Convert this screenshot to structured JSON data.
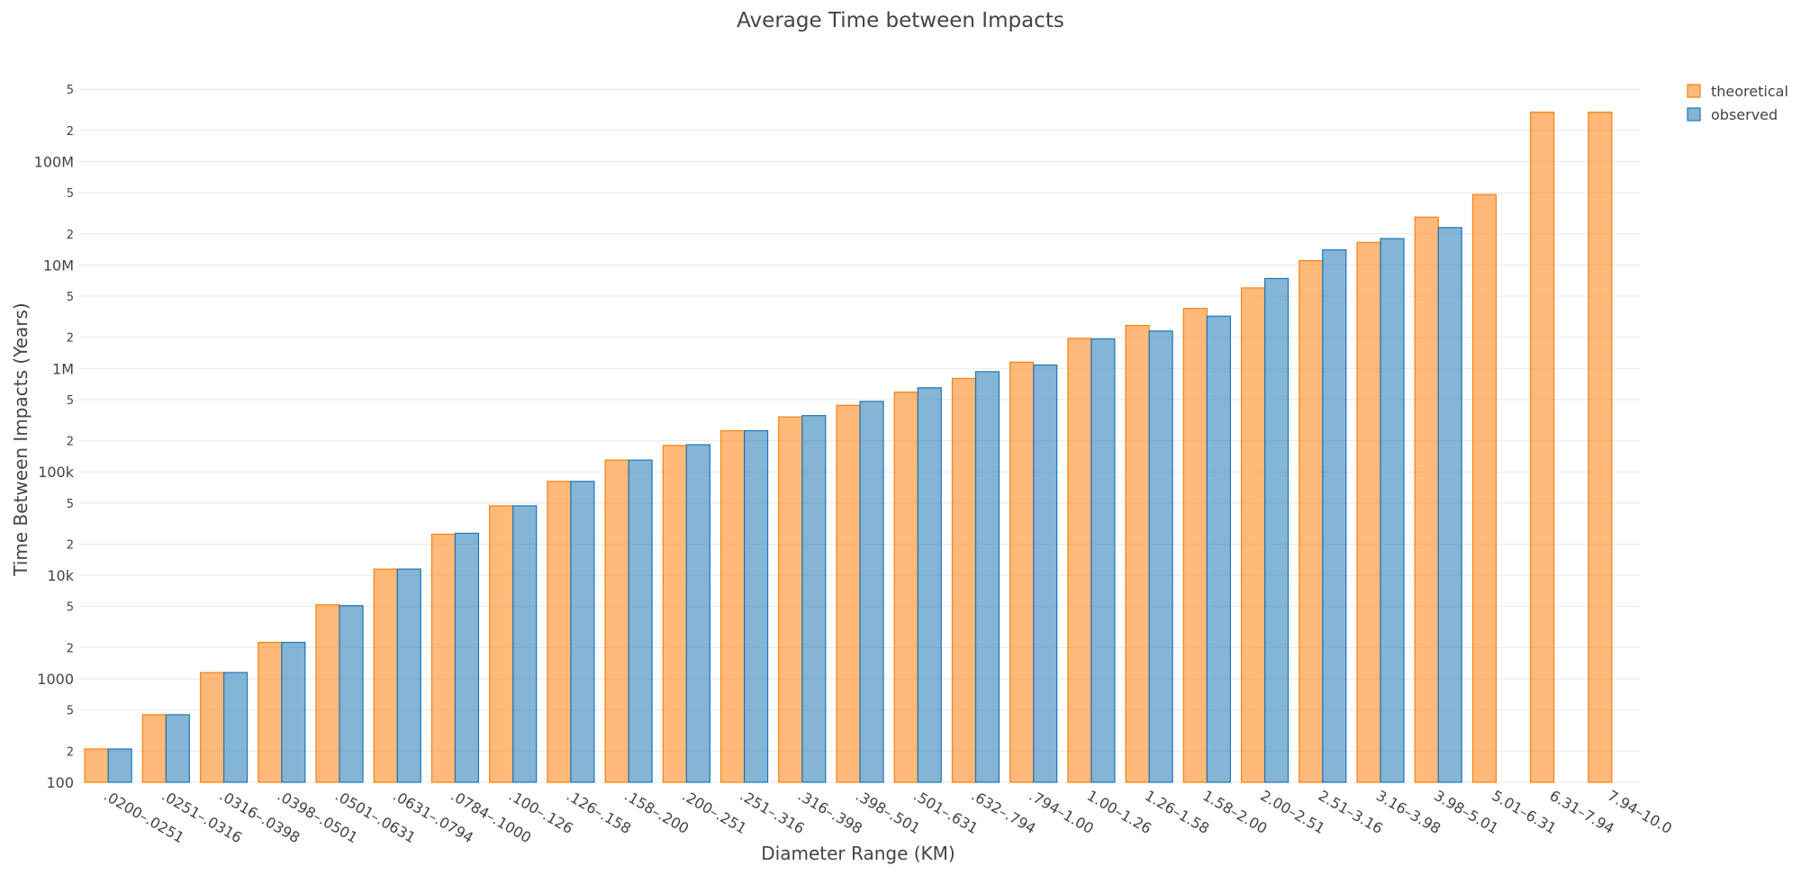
{
  "chart_data": {
    "type": "bar",
    "title": "Average Time between Impacts",
    "xlabel": "Diameter Range (KM)",
    "ylabel": "Time Between Impacts (Years)",
    "yscale": "log",
    "ylim": [
      100,
      600000000
    ],
    "y_major_ticks": [
      {
        "value": 100,
        "label": "100"
      },
      {
        "value": 1000,
        "label": "1000"
      },
      {
        "value": 10000,
        "label": "10k"
      },
      {
        "value": 100000,
        "label": "100k"
      },
      {
        "value": 1000000,
        "label": "1M"
      },
      {
        "value": 10000000,
        "label": "10M"
      },
      {
        "value": 100000000,
        "label": "100M"
      }
    ],
    "y_minor_tick_labels": [
      "2",
      "5"
    ],
    "grid": true,
    "legend_position": "top-right",
    "categories": [
      ".0200–.0251",
      ".0251–.0316",
      ".0316–.0398",
      ".0398–.0501",
      ".0501–.0631",
      ".0631–.0794",
      ".0784–.1000",
      ".100–.126",
      ".126–.158",
      ".158–.200",
      ".200–.251",
      ".251–.316",
      ".316–.398",
      ".398–.501",
      ".501–.631",
      ".632–.794",
      ".794–1.00",
      "1.00–1.26",
      "1.26–1.58",
      "1.58–2.00",
      "2.00–2.51",
      "2.51–3.16",
      "3.16–3.98",
      "3.98–5.01",
      "5.01–6.31",
      "6.31–7.94",
      "7.94–10.0"
    ],
    "series": [
      {
        "name": "theoretical",
        "color": "#ff7f0e",
        "values": [
          210,
          450,
          1150,
          2250,
          5200,
          11500,
          25000,
          47000,
          81000,
          130000,
          180000,
          250000,
          340000,
          440000,
          590000,
          800000,
          1150000,
          1950000,
          2600000,
          3800000,
          6000000,
          11000000,
          16500000,
          29000000,
          48000000,
          300000000,
          300000000
        ]
      },
      {
        "name": "observed",
        "color": "#1f77b4",
        "values": [
          210,
          450,
          1150,
          2250,
          5100,
          11500,
          25500,
          47000,
          81000,
          130000,
          183000,
          250000,
          350000,
          480000,
          650000,
          930000,
          1080000,
          1930000,
          2300000,
          3200000,
          7400000,
          14000000,
          18000000,
          23000000,
          null,
          null,
          null
        ]
      }
    ]
  }
}
